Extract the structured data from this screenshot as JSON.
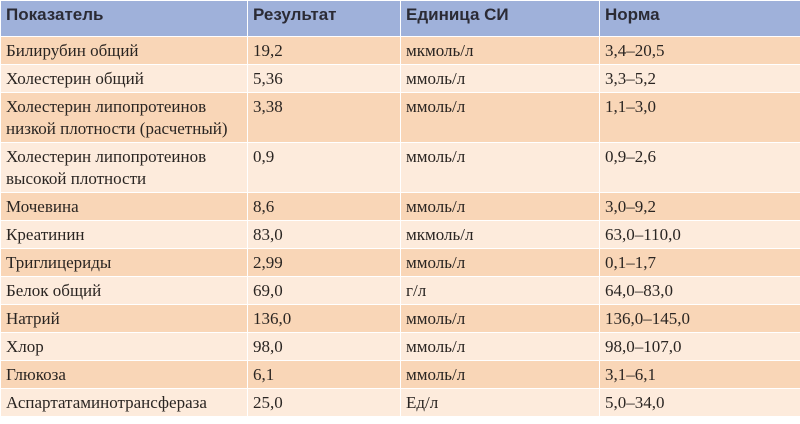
{
  "table": {
    "headers": [
      "Показатель",
      "Результат",
      "Единица СИ",
      "Норма"
    ],
    "rows": [
      [
        "Билирубин общий",
        "19,2",
        "мкмоль/л",
        "3,4–20,5"
      ],
      [
        "Холестерин общий",
        "5,36",
        "ммоль/л",
        "3,3–5,2"
      ],
      [
        "Холестерин липопротеинов низкой плотности (расчетный)",
        "3,38",
        "ммоль/л",
        "1,1–3,0"
      ],
      [
        "Холестерин липопротеинов высокой плотности",
        "0,9",
        "ммоль/л",
        "0,9–2,6"
      ],
      [
        "Мочевина",
        "8,6",
        "ммоль/л",
        "3,0–9,2"
      ],
      [
        "Креатинин",
        "83,0",
        "мкмоль/л",
        "63,0–110,0"
      ],
      [
        "Триглицериды",
        "2,99",
        "ммоль/л",
        "0,1–1,7"
      ],
      [
        "Белок общий",
        "69,0",
        "г/л",
        "64,0–83,0"
      ],
      [
        "Натрий",
        "136,0",
        "ммоль/л",
        "136,0–145,0"
      ],
      [
        "Хлор",
        "98,0",
        "ммоль/л",
        "98,0–107,0"
      ],
      [
        "Глюкоза",
        "6,1",
        "ммоль/л",
        "3,1–6,1"
      ],
      [
        "Аспартатаминотрансфераза",
        "25,0",
        "Ед/л",
        "5,0–34,0"
      ]
    ]
  },
  "colors": {
    "header_bg": "#9fb1da",
    "row_odd_bg": "#f9d6b7",
    "row_even_bg": "#fdebdc"
  }
}
